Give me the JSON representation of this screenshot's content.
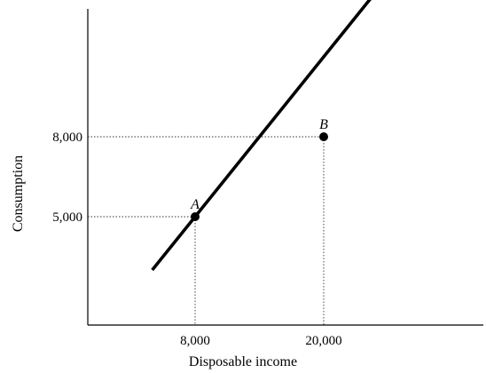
{
  "chart_data": {
    "type": "line",
    "title": "",
    "xlabel": "Disposable income",
    "ylabel": "Consumption",
    "xlim": [
      0,
      30000
    ],
    "ylim": [
      0,
      14000
    ],
    "x_ticks": [
      {
        "value": 8000,
        "label": "8,000"
      },
      {
        "value": 20000,
        "label": "20,000"
      }
    ],
    "y_ticks": [
      {
        "value": 5000,
        "label": "5,000"
      },
      {
        "value": 8000,
        "label": "8,000"
      }
    ],
    "grid": false,
    "series": [
      {
        "x": [
          4000,
          29000
        ],
        "y": [
          3000,
          15500
        ]
      }
    ],
    "points": [
      {
        "label": "A",
        "x": 8000,
        "y": 5000
      },
      {
        "label": "B",
        "x": 20000,
        "y": 8000
      }
    ],
    "colors": {
      "line": "#000000",
      "guides": "#333333"
    }
  }
}
